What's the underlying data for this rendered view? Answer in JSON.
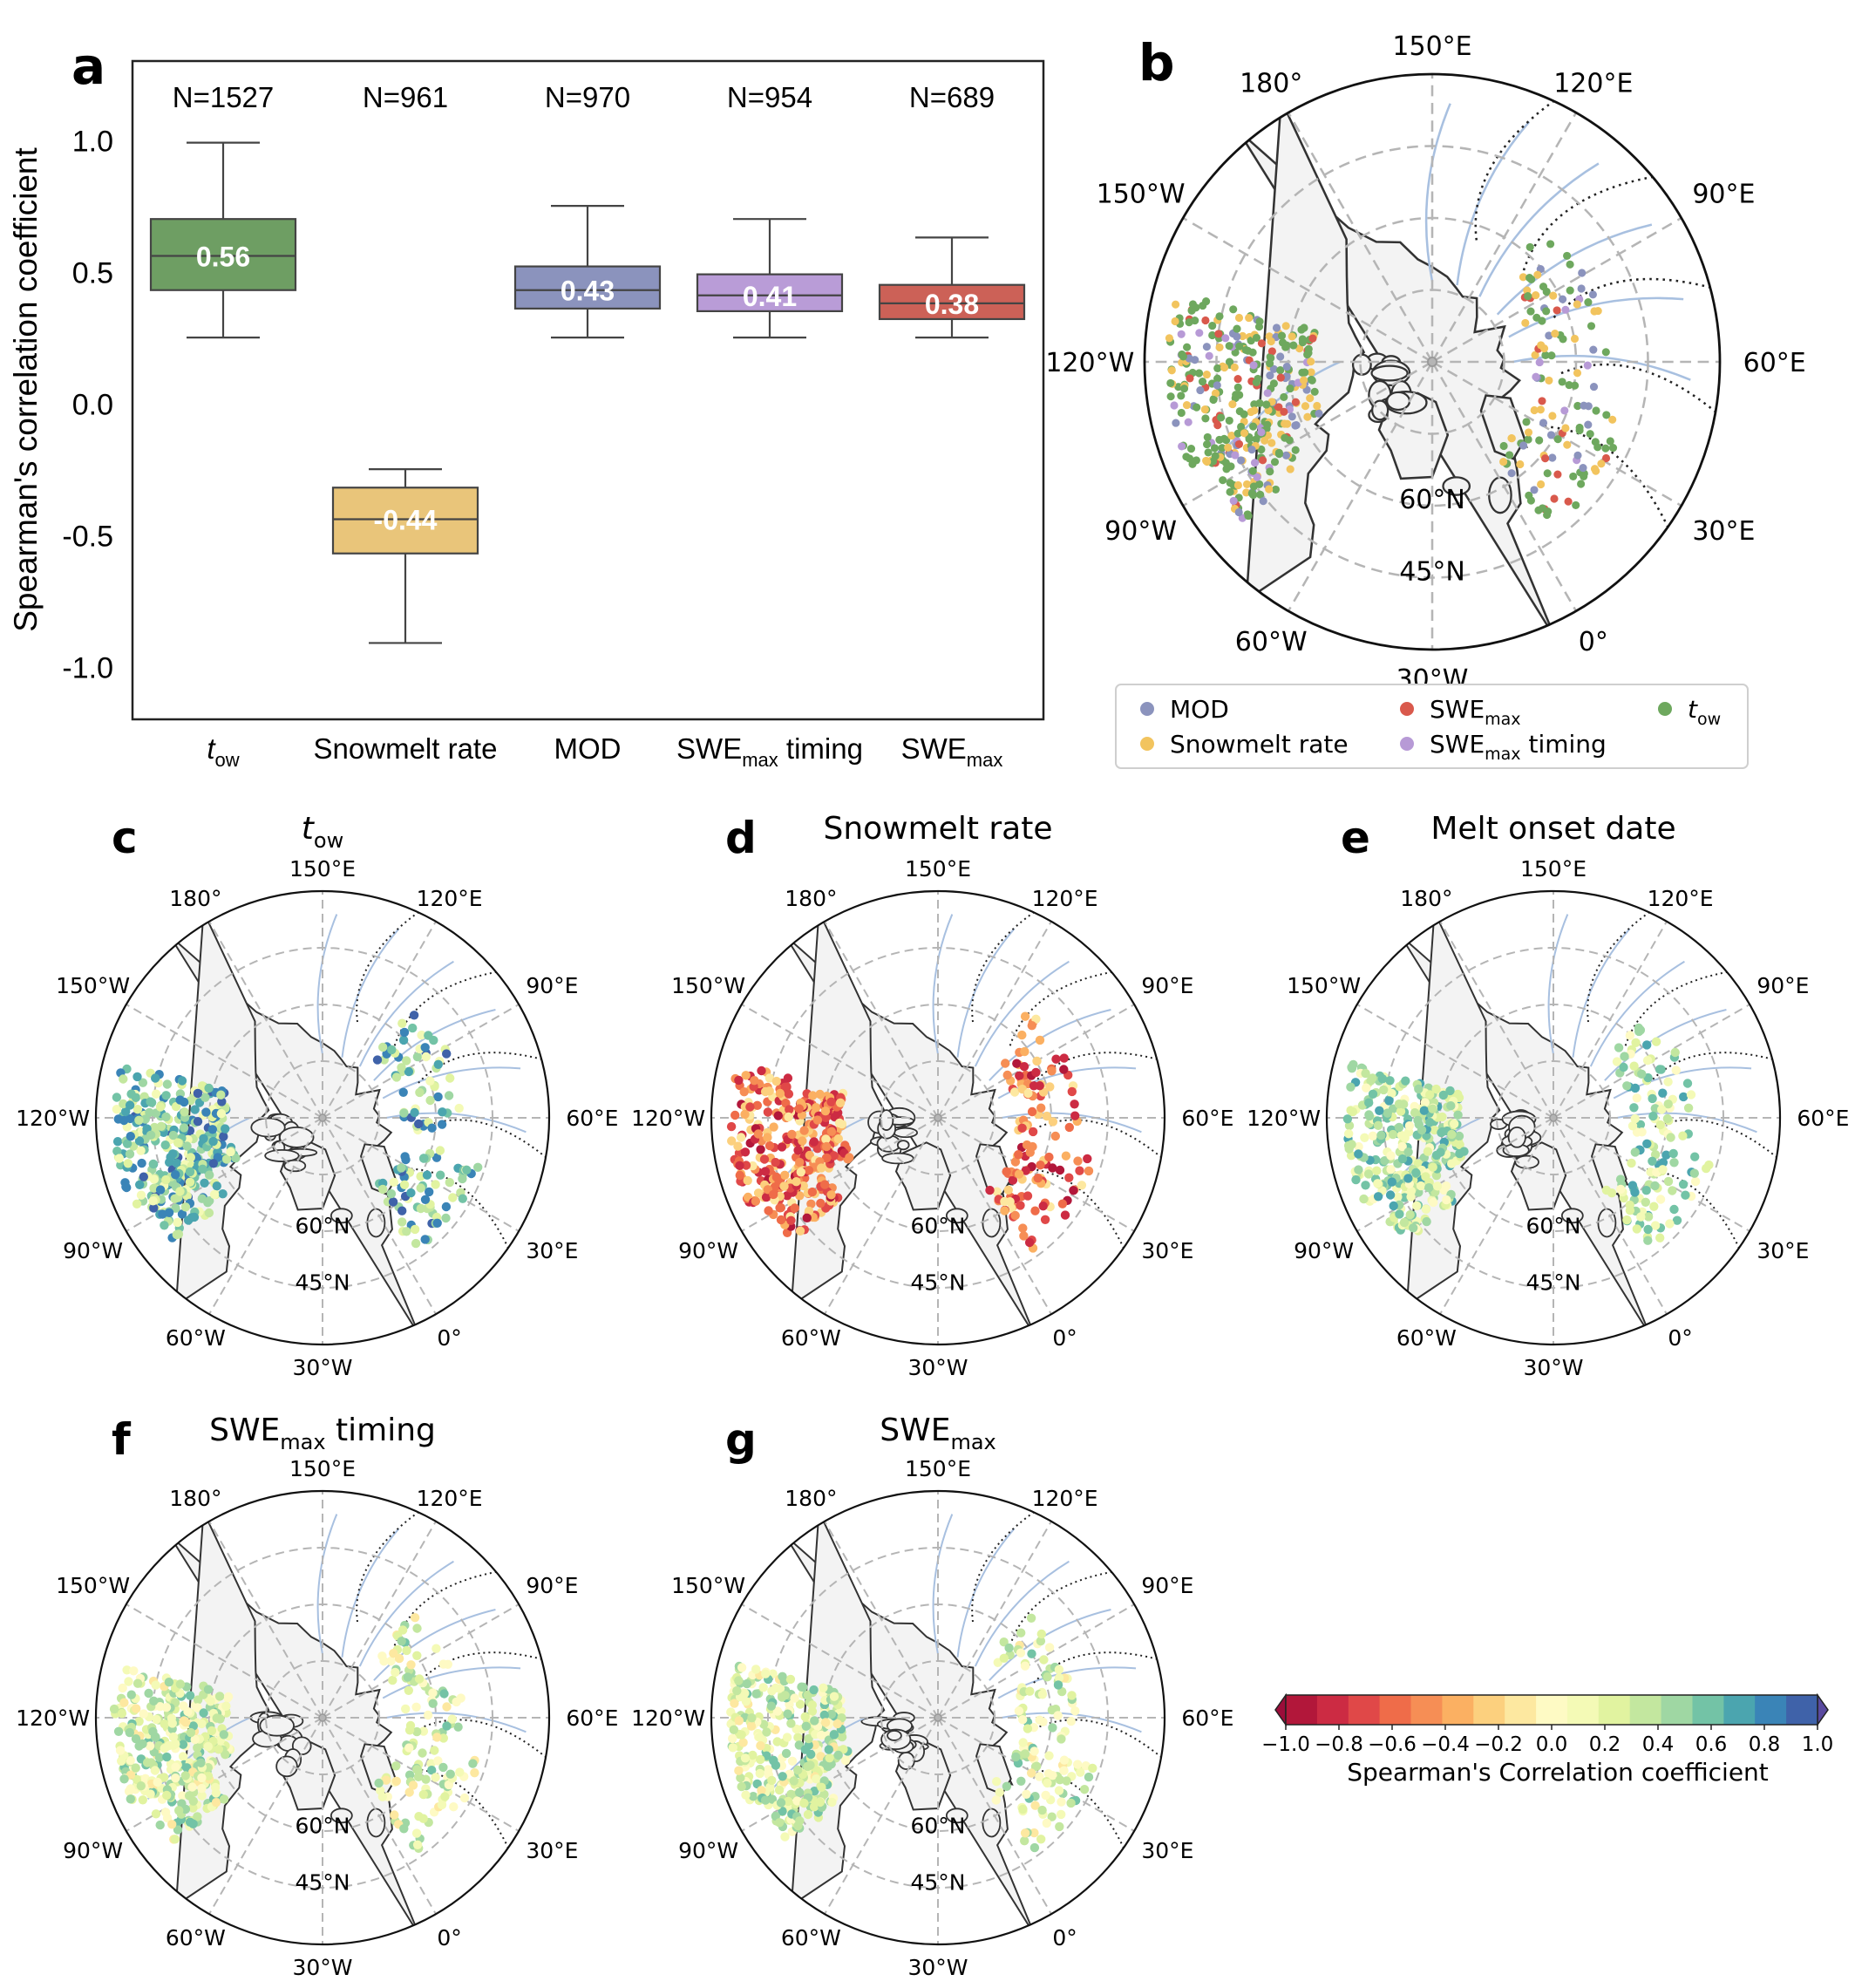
{
  "panel_letters": {
    "a": "a",
    "b": "b",
    "c": "c",
    "d": "d",
    "e": "e",
    "f": "f",
    "g": "g"
  },
  "chart_data": [
    {
      "type": "box",
      "panel": "a",
      "ylabel": "Spearman's correlation coefficient",
      "ylim": [
        -1.2,
        1.3
      ],
      "yticks": [
        "1.0",
        "0.5",
        "0.0",
        "-0.5",
        "-1.0"
      ],
      "categories": [
        {
          "main": "t",
          "sub": "ow",
          "italic": true
        },
        {
          "main": "Snowmelt rate",
          "sub": ""
        },
        {
          "main": "MOD",
          "sub": ""
        },
        {
          "main": "SWE",
          "sub": "max",
          "tail": " timing"
        },
        {
          "main": "SWE",
          "sub": "max"
        }
      ],
      "counts": [
        "N=1527",
        "N=961",
        "N=970",
        "N=954",
        "N=689"
      ],
      "boxes": [
        {
          "q1": 0.43,
          "median": 0.56,
          "q3": 0.7,
          "whislo": 0.25,
          "whishi": 0.99,
          "label": "0.56",
          "color": "#6e9e63"
        },
        {
          "q1": -0.57,
          "median": -0.44,
          "q3": -0.32,
          "whislo": -0.91,
          "whishi": -0.25,
          "label": "-0.44",
          "color": "#e9c57a"
        },
        {
          "q1": 0.36,
          "median": 0.43,
          "q3": 0.52,
          "whislo": 0.25,
          "whishi": 0.75,
          "label": "0.43",
          "color": "#8b93bd"
        },
        {
          "q1": 0.35,
          "median": 0.41,
          "q3": 0.49,
          "whislo": 0.25,
          "whishi": 0.7,
          "label": "0.41",
          "color": "#b99cd7"
        },
        {
          "q1": 0.32,
          "median": 0.38,
          "q3": 0.45,
          "whislo": 0.25,
          "whishi": 0.63,
          "label": "0.38",
          "color": "#cc6157"
        }
      ]
    }
  ],
  "map_labels": {
    "lon": [
      "150°E",
      "120°E",
      "90°E",
      "60°E",
      "30°E",
      "0°",
      "30°W",
      "60°W",
      "90°W",
      "120°W",
      "150°W",
      "180°"
    ],
    "lat": [
      "60°N",
      "45°N"
    ]
  },
  "legend_b": [
    {
      "label": "MOD",
      "sub": "",
      "color": "#8b93bd"
    },
    {
      "label": "SWE",
      "sub": "max",
      "color": "#d9594c"
    },
    {
      "label": "t",
      "sub": "ow",
      "italic": true,
      "color": "#6ea85e"
    },
    {
      "label": "Snowmelt rate",
      "sub": "",
      "color": "#f2c45e"
    },
    {
      "label": "SWE",
      "sub": "max",
      "tail": " timing",
      "color": "#b79ad6"
    }
  ],
  "panel_titles": {
    "c": {
      "main": "t",
      "sub": "ow",
      "italic": true
    },
    "d": {
      "main": "Snowmelt rate"
    },
    "e": {
      "main": "Melt onset date"
    },
    "f": {
      "main": "SWE",
      "sub": "max",
      "tail": " timing"
    },
    "g": {
      "main": "SWE",
      "sub": "max"
    }
  },
  "colorbar": {
    "label": "Spearman's Correlation coefficient",
    "ticks": [
      "−1.0",
      "−0.8",
      "−0.6",
      "−0.4",
      "−0.2",
      "0.0",
      "0.2",
      "0.4",
      "0.6",
      "0.8",
      "1.0"
    ],
    "colors": [
      "#b2173a",
      "#cc2b43",
      "#e04848",
      "#ef6c49",
      "#f68e55",
      "#fbb062",
      "#fcd07e",
      "#fde8a0",
      "#fefac4",
      "#f4fab6",
      "#e1f3a0",
      "#c3e79f",
      "#9fd7a3",
      "#73c3a6",
      "#4ba5af",
      "#3a84b7",
      "#3f62a9"
    ]
  }
}
